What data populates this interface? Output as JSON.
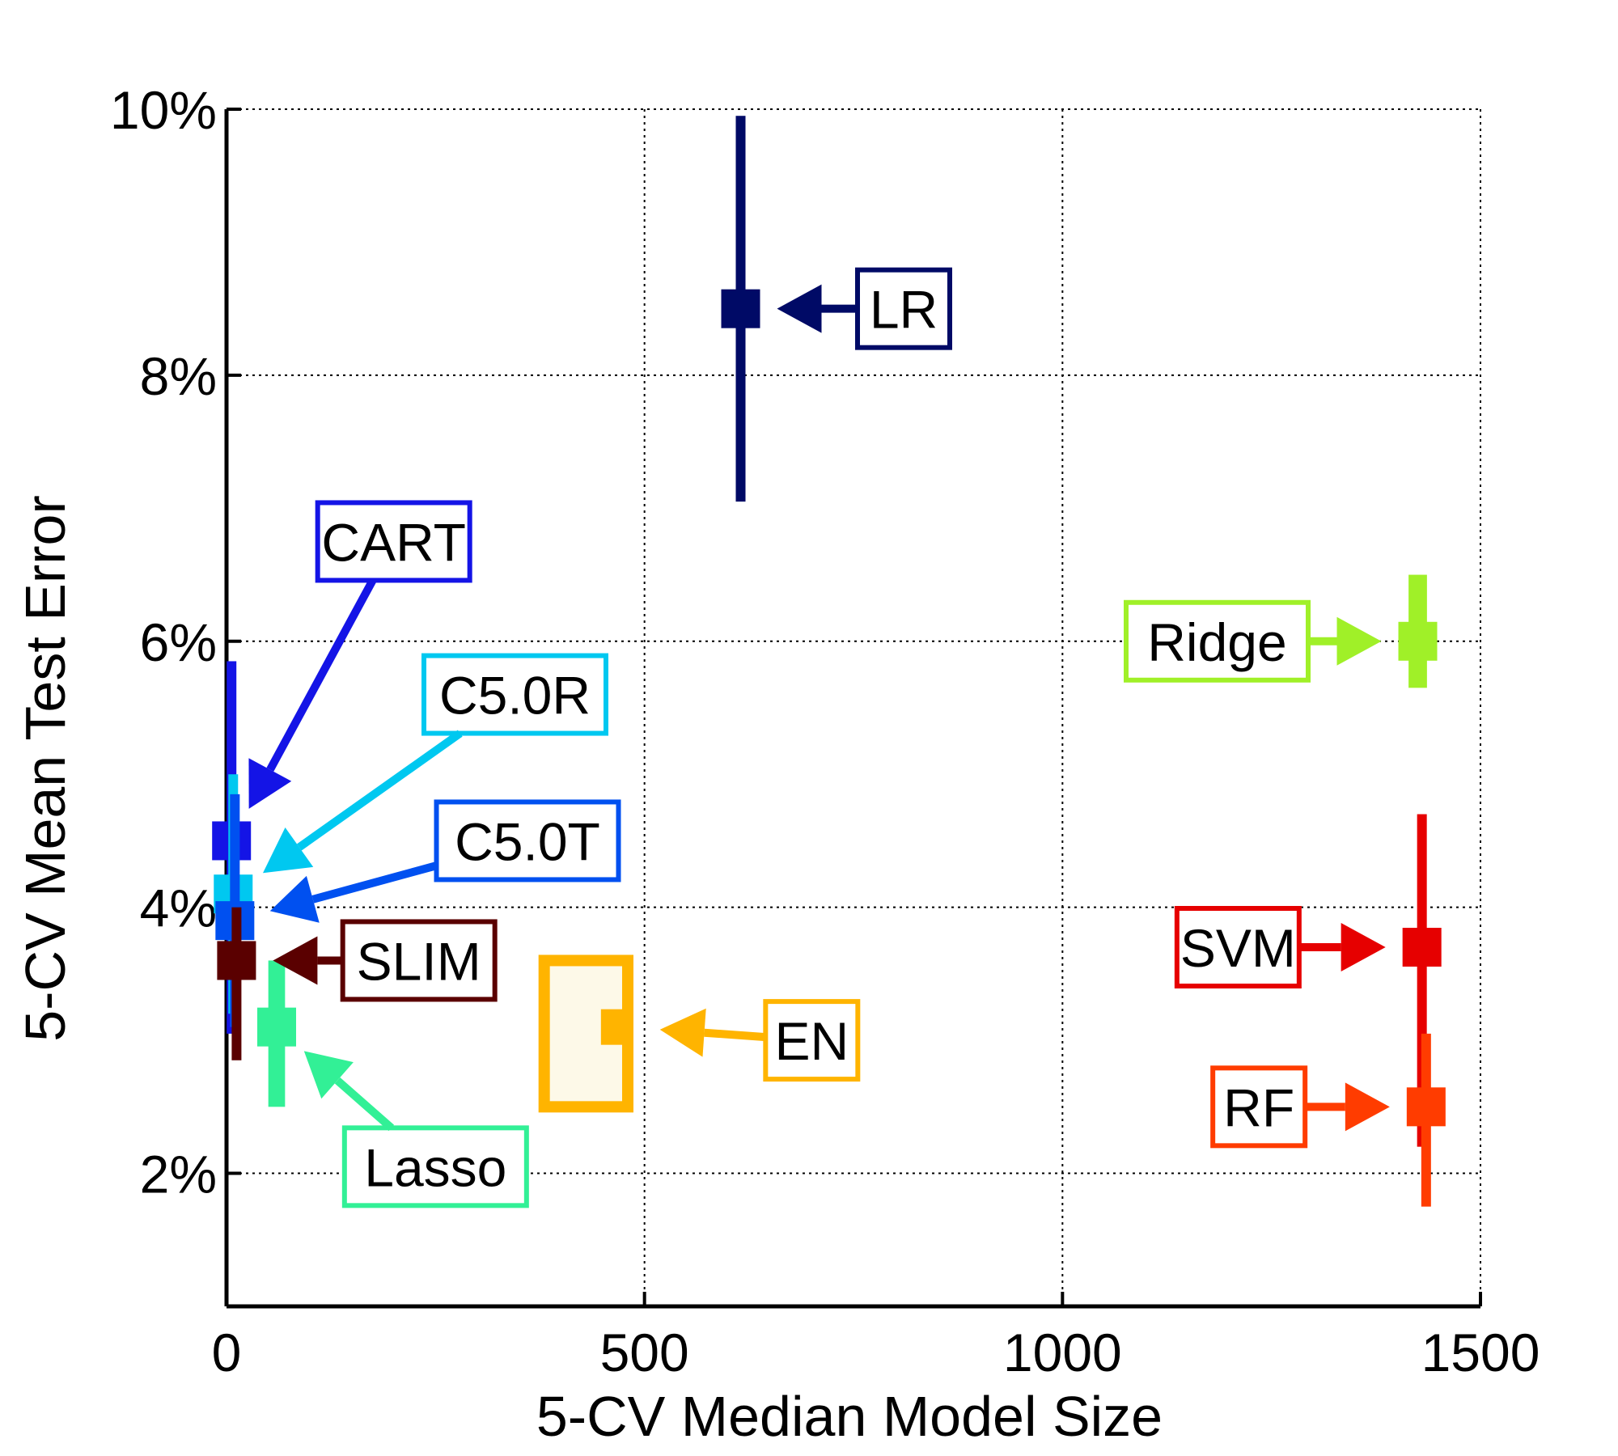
{
  "chart_data": {
    "type": "scatter",
    "title": "",
    "xlabel": "5-CV Median Model Size",
    "ylabel": "5-CV Mean Test Error",
    "xlim": [
      0,
      1500
    ],
    "ylim": [
      1,
      10
    ],
    "xticks": [
      0,
      500,
      1000,
      1500
    ],
    "xtick_labels": [
      "0",
      "500",
      "1000",
      "1500"
    ],
    "yticks": [
      2,
      4,
      6,
      8,
      10
    ],
    "ytick_labels": [
      "2%",
      "4%",
      "6%",
      "8%",
      "10%"
    ],
    "grid": true,
    "grid_style": "dotted",
    "series": [
      {
        "name": "LR",
        "color": "#000a66",
        "x": 615,
        "y": 8.5,
        "x_range": [
          612,
          618
        ],
        "y_range": [
          7.05,
          9.95
        ],
        "label_x": 810,
        "label_y": 8.5
      },
      {
        "name": "CART",
        "color": "#1414e6",
        "x": 6,
        "y": 4.5,
        "x_range": [
          3,
          9
        ],
        "y_range": [
          3.05,
          5.85
        ],
        "label_x": 200,
        "label_y": 6.75
      },
      {
        "name": "C5.0R",
        "color": "#00c8f0",
        "x": 8,
        "y": 4.1,
        "x_range": [
          3,
          13
        ],
        "y_range": [
          3.2,
          5.0
        ],
        "label_x": 345,
        "label_y": 5.6
      },
      {
        "name": "C5.0T",
        "color": "#0050f0",
        "x": 10,
        "y": 3.9,
        "x_range": [
          5,
          15
        ],
        "y_range": [
          3.1,
          4.85
        ],
        "label_x": 360,
        "label_y": 4.5
      },
      {
        "name": "SLIM",
        "color": "#5a0000",
        "x": 12,
        "y": 3.6,
        "x_range": [
          8,
          16
        ],
        "y_range": [
          2.85,
          4.0
        ],
        "label_x": 230,
        "label_y": 3.6
      },
      {
        "name": "Lasso",
        "color": "#32f096",
        "x": 60,
        "y": 3.1,
        "x_range": [
          50,
          70
        ],
        "y_range": [
          2.5,
          3.6
        ],
        "label_x": 250,
        "label_y": 2.05
      },
      {
        "name": "EN",
        "color": "#ffb400",
        "x": 475,
        "y": 3.1,
        "x_range": [
          380,
          480
        ],
        "y_range": [
          2.5,
          3.6
        ],
        "label_x": 700,
        "label_y": 3.0
      },
      {
        "name": "Ridge",
        "color": "#a0f028",
        "x": 1425,
        "y": 6.0,
        "x_range": [
          1418,
          1440
        ],
        "y_range": [
          5.65,
          6.5
        ],
        "label_x": 1185,
        "label_y": 6.0
      },
      {
        "name": "SVM",
        "color": "#e60000",
        "x": 1430,
        "y": 3.7,
        "x_range": [
          1425,
          1435
        ],
        "y_range": [
          2.2,
          4.7
        ],
        "label_x": 1210,
        "label_y": 3.7
      },
      {
        "name": "RF",
        "color": "#ff3c00",
        "x": 1435,
        "y": 2.5,
        "x_range": [
          1430,
          1440
        ],
        "y_range": [
          1.75,
          3.05
        ],
        "label_x": 1235,
        "label_y": 2.5
      }
    ]
  }
}
